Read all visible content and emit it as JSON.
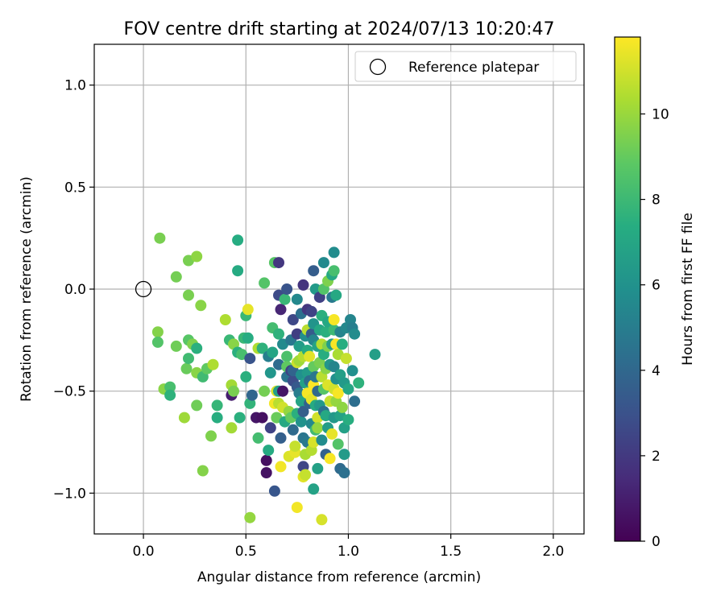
{
  "chart_data": {
    "type": "scatter",
    "title": "FOV centre drift starting at 2024/07/13 10:20:47",
    "xlabel": "Angular distance from reference (arcmin)",
    "ylabel": "Rotation from reference (arcmin)",
    "xlim": [
      -0.24,
      2.15
    ],
    "ylim": [
      -1.2,
      1.2
    ],
    "x_ticks": [
      0.0,
      0.5,
      1.0,
      1.5,
      2.0
    ],
    "x_tick_labels": [
      "0.0",
      "0.5",
      "1.0",
      "1.5",
      "2.0"
    ],
    "y_ticks": [
      -1.0,
      -0.5,
      0.0,
      0.5,
      1.0
    ],
    "y_tick_labels": [
      "−1.0",
      "−0.5",
      "0.0",
      "0.5",
      "1.0"
    ],
    "grid": true,
    "legend": {
      "position": "top-right",
      "entries": [
        {
          "label": "Reference platepar",
          "marker": "open-circle"
        }
      ]
    },
    "reference": {
      "x": 0.0,
      "y": 0.0
    },
    "colorbar": {
      "label": "Hours from first FF file",
      "colormap": "viridis",
      "range": [
        0,
        11.8
      ],
      "ticks": [
        0,
        2,
        4,
        6,
        8,
        10
      ],
      "tick_labels": [
        "0",
        "2",
        "4",
        "6",
        "8",
        "10"
      ]
    },
    "points": [
      [
        0.08,
        0.25,
        9.4
      ],
      [
        0.07,
        -0.21,
        9.6
      ],
      [
        0.07,
        -0.26,
        8.6
      ],
      [
        0.1,
        -0.49,
        9.7
      ],
      [
        0.13,
        -0.48,
        8.3
      ],
      [
        0.13,
        -0.52,
        7.6
      ],
      [
        0.16,
        0.06,
        9.3
      ],
      [
        0.16,
        -0.28,
        9.2
      ],
      [
        0.2,
        -0.63,
        10.1
      ],
      [
        0.21,
        -0.39,
        9.1
      ],
      [
        0.22,
        0.14,
        9.4
      ],
      [
        0.22,
        -0.03,
        9.4
      ],
      [
        0.22,
        -0.25,
        8.7
      ],
      [
        0.22,
        -0.34,
        8.1
      ],
      [
        0.24,
        -0.27,
        9.5
      ],
      [
        0.26,
        0.16,
        9.8
      ],
      [
        0.26,
        -0.29,
        7.5
      ],
      [
        0.26,
        -0.41,
        9.7
      ],
      [
        0.26,
        -0.57,
        9.2
      ],
      [
        0.28,
        -0.08,
        9.7
      ],
      [
        0.29,
        -0.43,
        8.1
      ],
      [
        0.29,
        -0.89,
        9.6
      ],
      [
        0.31,
        -0.39,
        8.9
      ],
      [
        0.33,
        -0.72,
        9.5
      ],
      [
        0.34,
        -0.37,
        10.4
      ],
      [
        0.36,
        -0.57,
        7.8
      ],
      [
        0.36,
        -0.63,
        7.4
      ],
      [
        0.4,
        -0.15,
        10.4
      ],
      [
        0.42,
        -0.25,
        7.9
      ],
      [
        0.43,
        -0.47,
        10.2
      ],
      [
        0.43,
        -0.52,
        1.0
      ],
      [
        0.43,
        -0.68,
        10.2
      ],
      [
        0.44,
        -0.27,
        9.7
      ],
      [
        0.44,
        -0.5,
        9.4
      ],
      [
        0.46,
        0.24,
        7.3
      ],
      [
        0.46,
        0.09,
        7.2
      ],
      [
        0.46,
        -0.31,
        7.5
      ],
      [
        0.47,
        -0.63,
        7.5
      ],
      [
        0.48,
        -0.32,
        8.3
      ],
      [
        0.49,
        -0.24,
        7.9
      ],
      [
        0.5,
        -0.13,
        7.9
      ],
      [
        0.5,
        -0.43,
        7.5
      ],
      [
        0.51,
        -0.1,
        11.4
      ],
      [
        0.51,
        -0.24,
        7.3
      ],
      [
        0.52,
        -0.34,
        3.1
      ],
      [
        0.52,
        -0.56,
        7.7
      ],
      [
        0.52,
        -1.12,
        9.9
      ],
      [
        0.53,
        -0.52,
        3.9
      ],
      [
        0.55,
        -0.63,
        0.7
      ],
      [
        0.56,
        -0.29,
        10.4
      ],
      [
        0.56,
        -0.73,
        8.2
      ],
      [
        0.58,
        -0.63,
        0.5
      ],
      [
        0.58,
        -0.29,
        7.6
      ],
      [
        0.59,
        -0.5,
        9.3
      ],
      [
        0.59,
        0.03,
        8.6
      ],
      [
        0.6,
        -0.84,
        0.5
      ],
      [
        0.6,
        -0.9,
        0.6
      ],
      [
        0.61,
        -0.79,
        7.2
      ],
      [
        0.61,
        -0.33,
        5.1
      ],
      [
        0.62,
        -0.41,
        6.2
      ],
      [
        0.62,
        -0.68,
        2.4
      ],
      [
        0.63,
        -0.19,
        8.2
      ],
      [
        0.63,
        -0.31,
        6.9
      ],
      [
        0.64,
        0.13,
        8.7
      ],
      [
        0.64,
        -0.56,
        11.6
      ],
      [
        0.64,
        -0.99,
        3.2
      ],
      [
        0.65,
        -0.5,
        11.2
      ],
      [
        0.65,
        -0.63,
        10.2
      ],
      [
        0.65,
        -0.63,
        9.1
      ],
      [
        0.66,
        -0.22,
        7.6
      ],
      [
        0.66,
        0.13,
        1.9
      ],
      [
        0.66,
        -0.03,
        2.7
      ],
      [
        0.66,
        -0.37,
        4.2
      ],
      [
        0.66,
        -0.56,
        10.6
      ],
      [
        0.66,
        -0.5,
        6.6
      ],
      [
        0.67,
        -0.1,
        1.3
      ],
      [
        0.67,
        -0.87,
        11.6
      ],
      [
        0.67,
        -0.73,
        3.6
      ],
      [
        0.68,
        -0.5,
        0.7
      ],
      [
        0.68,
        -0.58,
        11.0
      ],
      [
        0.68,
        -0.27,
        5.6
      ],
      [
        0.69,
        -0.05,
        7.9
      ],
      [
        0.69,
        -0.65,
        7.1
      ],
      [
        0.7,
        -0.43,
        4.5
      ],
      [
        0.7,
        -0.33,
        8.4
      ],
      [
        0.7,
        0.0,
        3.1
      ],
      [
        0.7,
        -0.38,
        8.9
      ],
      [
        0.71,
        -0.82,
        11.2
      ],
      [
        0.71,
        -0.6,
        9.9
      ],
      [
        0.72,
        -0.4,
        2.3
      ],
      [
        0.72,
        -0.63,
        9.0
      ],
      [
        0.72,
        -0.25,
        4.7
      ],
      [
        0.73,
        -0.45,
        2.8
      ],
      [
        0.73,
        -0.69,
        4.1
      ],
      [
        0.73,
        -0.15,
        2.6
      ],
      [
        0.73,
        -0.4,
        3.8
      ],
      [
        0.74,
        -0.8,
        11.4
      ],
      [
        0.74,
        -0.77,
        10.8
      ],
      [
        0.75,
        -0.36,
        10.9
      ],
      [
        0.75,
        -0.61,
        7.5
      ],
      [
        0.75,
        -0.48,
        3.3
      ],
      [
        0.75,
        -0.22,
        2.2
      ],
      [
        0.75,
        -0.05,
        5.5
      ],
      [
        0.75,
        -1.07,
        11.6
      ],
      [
        0.76,
        -0.28,
        6.5
      ],
      [
        0.76,
        -0.35,
        10.1
      ],
      [
        0.76,
        -0.51,
        5.0
      ],
      [
        0.77,
        -0.65,
        6.0
      ],
      [
        0.77,
        -0.12,
        4.4
      ],
      [
        0.77,
        -0.42,
        5.9
      ],
      [
        0.77,
        -0.55,
        6.9
      ],
      [
        0.78,
        -0.33,
        10.5
      ],
      [
        0.78,
        -0.92,
        11.3
      ],
      [
        0.78,
        -0.87,
        2.5
      ],
      [
        0.78,
        -0.73,
        4.6
      ],
      [
        0.78,
        -0.6,
        3.6
      ],
      [
        0.78,
        0.02,
        1.8
      ],
      [
        0.79,
        -0.46,
        6.7
      ],
      [
        0.79,
        -0.23,
        5.8
      ],
      [
        0.79,
        -0.81,
        10.3
      ],
      [
        0.79,
        -0.91,
        10.8
      ],
      [
        0.8,
        -0.75,
        4.8
      ],
      [
        0.8,
        -0.51,
        11.7
      ],
      [
        0.8,
        -0.3,
        7.2
      ],
      [
        0.8,
        -0.1,
        1.9
      ],
      [
        0.8,
        -0.2,
        10.6
      ],
      [
        0.8,
        -0.41,
        6.4
      ],
      [
        0.81,
        -0.45,
        4.2
      ],
      [
        0.81,
        -0.56,
        3.8
      ],
      [
        0.81,
        -0.33,
        11.3
      ],
      [
        0.82,
        -0.22,
        3.4
      ],
      [
        0.82,
        -0.79,
        10.5
      ],
      [
        0.82,
        -0.66,
        5.5
      ],
      [
        0.82,
        -0.54,
        11.4
      ],
      [
        0.82,
        -0.11,
        2.4
      ],
      [
        0.83,
        -0.47,
        11.8
      ],
      [
        0.83,
        -0.25,
        5.4
      ],
      [
        0.83,
        -0.75,
        11.1
      ],
      [
        0.83,
        -0.38,
        9.0
      ],
      [
        0.83,
        -0.98,
        6.8
      ],
      [
        0.83,
        0.09,
        3.5
      ],
      [
        0.83,
        -0.17,
        6.1
      ],
      [
        0.84,
        -0.69,
        8.1
      ],
      [
        0.84,
        -0.57,
        7.2
      ],
      [
        0.84,
        -0.43,
        4.7
      ],
      [
        0.84,
        0.0,
        6.4
      ],
      [
        0.85,
        -0.28,
        6.8
      ],
      [
        0.85,
        -0.63,
        11.0
      ],
      [
        0.85,
        -0.88,
        6.7
      ],
      [
        0.85,
        -0.5,
        4.0
      ],
      [
        0.85,
        -0.68,
        9.9
      ],
      [
        0.86,
        -0.2,
        7.1
      ],
      [
        0.86,
        -0.36,
        9.4
      ],
      [
        0.86,
        -0.04,
        2.3
      ],
      [
        0.86,
        -0.57,
        6.3
      ],
      [
        0.87,
        -0.74,
        5.7
      ],
      [
        0.87,
        -0.43,
        10.6
      ],
      [
        0.87,
        -0.27,
        10.5
      ],
      [
        0.87,
        -0.13,
        7.5
      ],
      [
        0.87,
        -1.13,
        11.1
      ],
      [
        0.88,
        0.13,
        5.6
      ],
      [
        0.88,
        -0.32,
        7.4
      ],
      [
        0.88,
        -0.49,
        8.7
      ],
      [
        0.88,
        -0.6,
        4.4
      ],
      [
        0.88,
        0.0,
        8.6
      ],
      [
        0.89,
        -0.21,
        7.5
      ],
      [
        0.89,
        -0.81,
        3.7
      ],
      [
        0.89,
        -0.39,
        9.7
      ],
      [
        0.89,
        -0.62,
        7.1
      ],
      [
        0.9,
        -0.28,
        9.5
      ],
      [
        0.9,
        -0.47,
        11.2
      ],
      [
        0.9,
        -0.68,
        6.5
      ],
      [
        0.9,
        -0.16,
        7.1
      ],
      [
        0.9,
        0.04,
        9.5
      ],
      [
        0.91,
        -0.83,
        11.7
      ],
      [
        0.91,
        -0.37,
        6.2
      ],
      [
        0.91,
        -0.55,
        10.8
      ],
      [
        0.92,
        -0.27,
        6.5
      ],
      [
        0.92,
        -0.04,
        4.8
      ],
      [
        0.92,
        -0.71,
        11.4
      ],
      [
        0.92,
        0.07,
        7.1
      ],
      [
        0.93,
        -0.49,
        11.0
      ],
      [
        0.93,
        -0.63,
        6.3
      ],
      [
        0.93,
        0.18,
        5.7
      ],
      [
        0.93,
        -0.38,
        5.4
      ],
      [
        0.93,
        -0.2,
        8.0
      ],
      [
        0.93,
        0.09,
        8.3
      ],
      [
        0.93,
        -0.15,
        11.7
      ],
      [
        0.94,
        -0.03,
        7.1
      ],
      [
        0.94,
        -0.44,
        5.9
      ],
      [
        0.94,
        -0.27,
        11.7
      ],
      [
        0.94,
        -0.55,
        9.9
      ],
      [
        0.95,
        -0.51,
        11.7
      ],
      [
        0.95,
        -0.32,
        10.3
      ],
      [
        0.95,
        -0.76,
        8.6
      ],
      [
        0.96,
        -0.62,
        6.8
      ],
      [
        0.96,
        -0.42,
        6.6
      ],
      [
        0.96,
        -0.88,
        4.1
      ],
      [
        0.96,
        -0.21,
        5.3
      ],
      [
        0.97,
        -0.58,
        9.8
      ],
      [
        0.97,
        -0.27,
        7.4
      ],
      [
        0.98,
        -0.81,
        6.4
      ],
      [
        0.98,
        -0.9,
        4.4
      ],
      [
        0.98,
        -0.68,
        6.7
      ],
      [
        0.98,
        -0.46,
        6.4
      ],
      [
        0.99,
        -0.34,
        10.8
      ],
      [
        0.99,
        -0.19,
        5.5
      ],
      [
        1.0,
        -0.64,
        7.4
      ],
      [
        1.0,
        -0.49,
        7.0
      ],
      [
        1.01,
        -0.15,
        5.4
      ],
      [
        1.02,
        -0.4,
        5.9
      ],
      [
        1.02,
        -0.19,
        5.1
      ],
      [
        1.03,
        -0.22,
        5.7
      ],
      [
        1.03,
        -0.55,
        4.3
      ],
      [
        1.05,
        -0.46,
        7.6
      ],
      [
        1.13,
        -0.32,
        6.6
      ]
    ]
  }
}
